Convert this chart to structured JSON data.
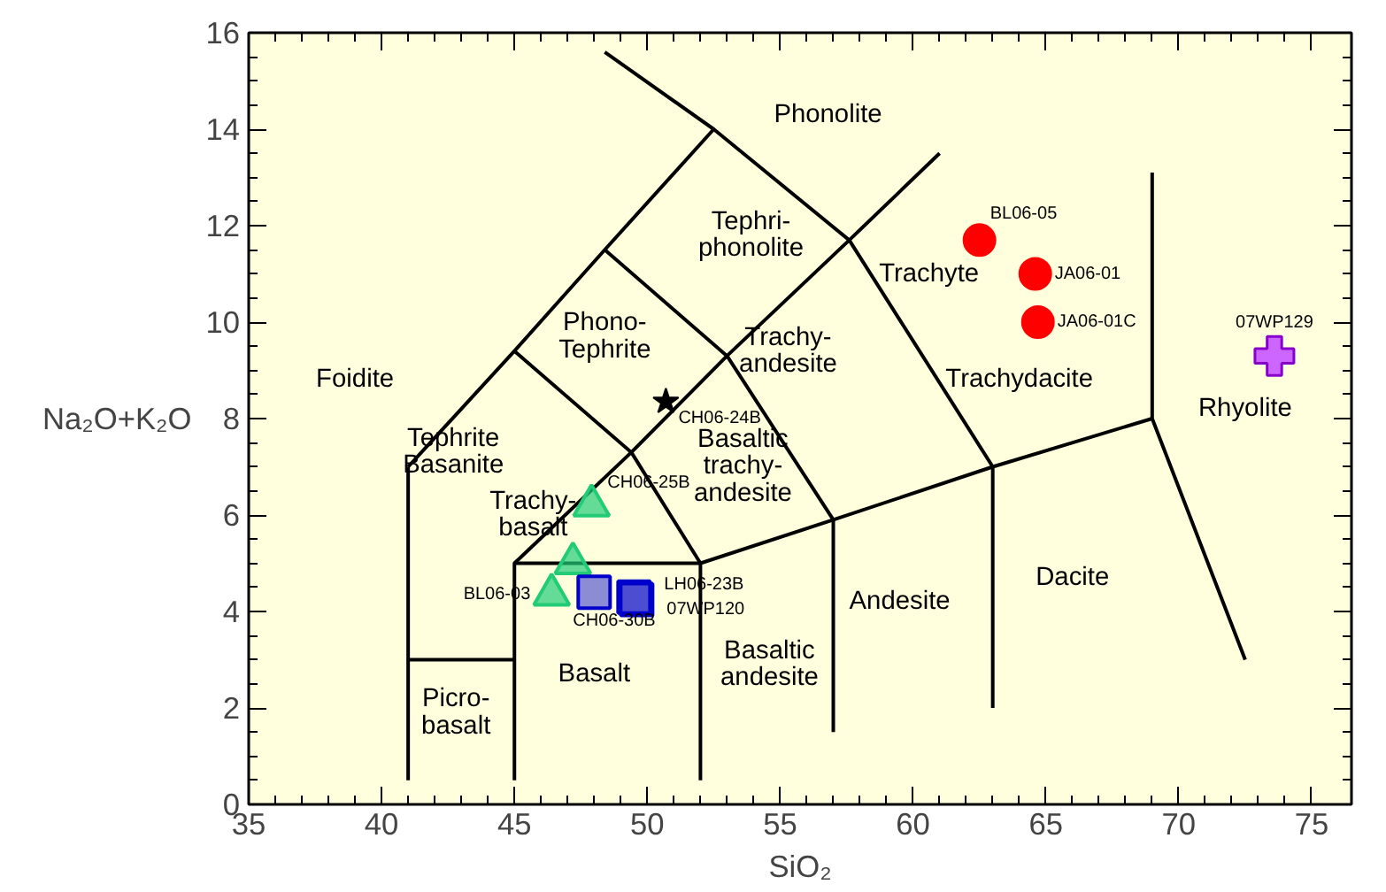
{
  "chart_data": {
    "type": "scatter",
    "xlabel": "SiO₂",
    "ylabel": "Na₂O+K₂O",
    "xlim": [
      35,
      76.5
    ],
    "ylim": [
      0,
      16
    ],
    "xticks": [
      35,
      40,
      45,
      50,
      55,
      60,
      65,
      70,
      75
    ],
    "yticks": [
      0,
      2,
      4,
      6,
      8,
      10,
      12,
      14,
      16
    ],
    "grid": false,
    "series": [
      {
        "type": "line",
        "color": "#000000",
        "x": [
          41,
          41
        ],
        "values": [
          0.5,
          7
        ]
      },
      {
        "type": "line",
        "color": "#000000",
        "x": [
          41,
          45
        ],
        "values": [
          3,
          3
        ]
      },
      {
        "type": "line",
        "color": "#000000",
        "x": [
          45,
          45,
          52
        ],
        "values": [
          0.5,
          5,
          5
        ]
      },
      {
        "type": "line",
        "color": "#000000",
        "x": [
          52,
          52,
          57,
          63,
          69
        ],
        "values": [
          0.5,
          5,
          5.9,
          7,
          8
        ]
      },
      {
        "type": "line",
        "color": "#000000",
        "x": [
          57,
          57
        ],
        "values": [
          1.5,
          5.9
        ]
      },
      {
        "type": "line",
        "color": "#000000",
        "x": [
          63,
          63
        ],
        "values": [
          2,
          7
        ]
      },
      {
        "type": "line",
        "color": "#000000",
        "x": [
          69,
          69,
          72.5
        ],
        "values": [
          13.1,
          8,
          3
        ]
      },
      {
        "type": "line",
        "color": "#000000",
        "x": [
          45,
          49.4,
          53,
          57.6,
          61
        ],
        "values": [
          5,
          7.3,
          9.3,
          11.7,
          13.5
        ]
      },
      {
        "type": "line",
        "color": "#000000",
        "x": [
          41,
          45,
          48.4,
          52.5,
          48.4
        ],
        "values": [
          7,
          9.4,
          11.5,
          14,
          15.6
        ]
      },
      {
        "type": "line",
        "color": "#000000",
        "x": [
          45,
          49.4,
          52
        ],
        "values": [
          9.4,
          7.3,
          5
        ]
      },
      {
        "type": "line",
        "color": "#000000",
        "x": [
          48.4,
          53,
          57
        ],
        "values": [
          11.5,
          9.3,
          5.9
        ]
      },
      {
        "type": "line",
        "color": "#000000",
        "x": [
          52.5,
          57.6,
          63
        ],
        "values": [
          14,
          11.7,
          7
        ]
      },
      {
        "type": "scatter",
        "marker": "circle",
        "color": "#ff0000",
        "x": [
          62.5,
          64.6,
          64.7
        ],
        "values": [
          11.7,
          11.0,
          10.0
        ],
        "value_labels": [
          "BL06-05",
          "JA06-01",
          "JA06-01C"
        ]
      },
      {
        "type": "scatter",
        "marker": "cross",
        "color": "#cc66ff",
        "x": [
          73.6
        ],
        "values": [
          9.3
        ],
        "value_labels": [
          "07WP129"
        ]
      },
      {
        "type": "scatter",
        "marker": "star",
        "color": "#000000",
        "x": [
          50.7
        ],
        "values": [
          8.35
        ],
        "value_labels": [
          "CH06-24B"
        ]
      },
      {
        "type": "scatter",
        "marker": "triangle",
        "color": "#22cc77",
        "x": [
          47.9,
          47.2,
          46.4
        ],
        "values": [
          6.2,
          5.0,
          4.35
        ],
        "value_labels": [
          "CH06-25B",
          null,
          "BL06-03"
        ]
      },
      {
        "type": "scatter",
        "marker": "square",
        "color": "#0000cc",
        "x": [
          48.0,
          49.5,
          49.6
        ],
        "values": [
          4.4,
          4.3,
          4.25
        ],
        "value_labels": [
          "CH06-30B",
          "LH06-23B",
          "07WP120"
        ]
      }
    ],
    "annotations": [
      "Phonolite",
      "Tephri-\nphonolite",
      "Phono-\nTephrite",
      "Foidite",
      "Trachy-\nandesite",
      "Basaltic\ntrachy-\nandesite",
      "Tephrite\nBasanite",
      "Trachy-\nbasalt",
      "Trachyte",
      "Trachydacite",
      "Rhyolite",
      "Dacite",
      "Andesite",
      "Basaltic\nandesite",
      "Basalt",
      "Picro-\nbasalt"
    ]
  }
}
